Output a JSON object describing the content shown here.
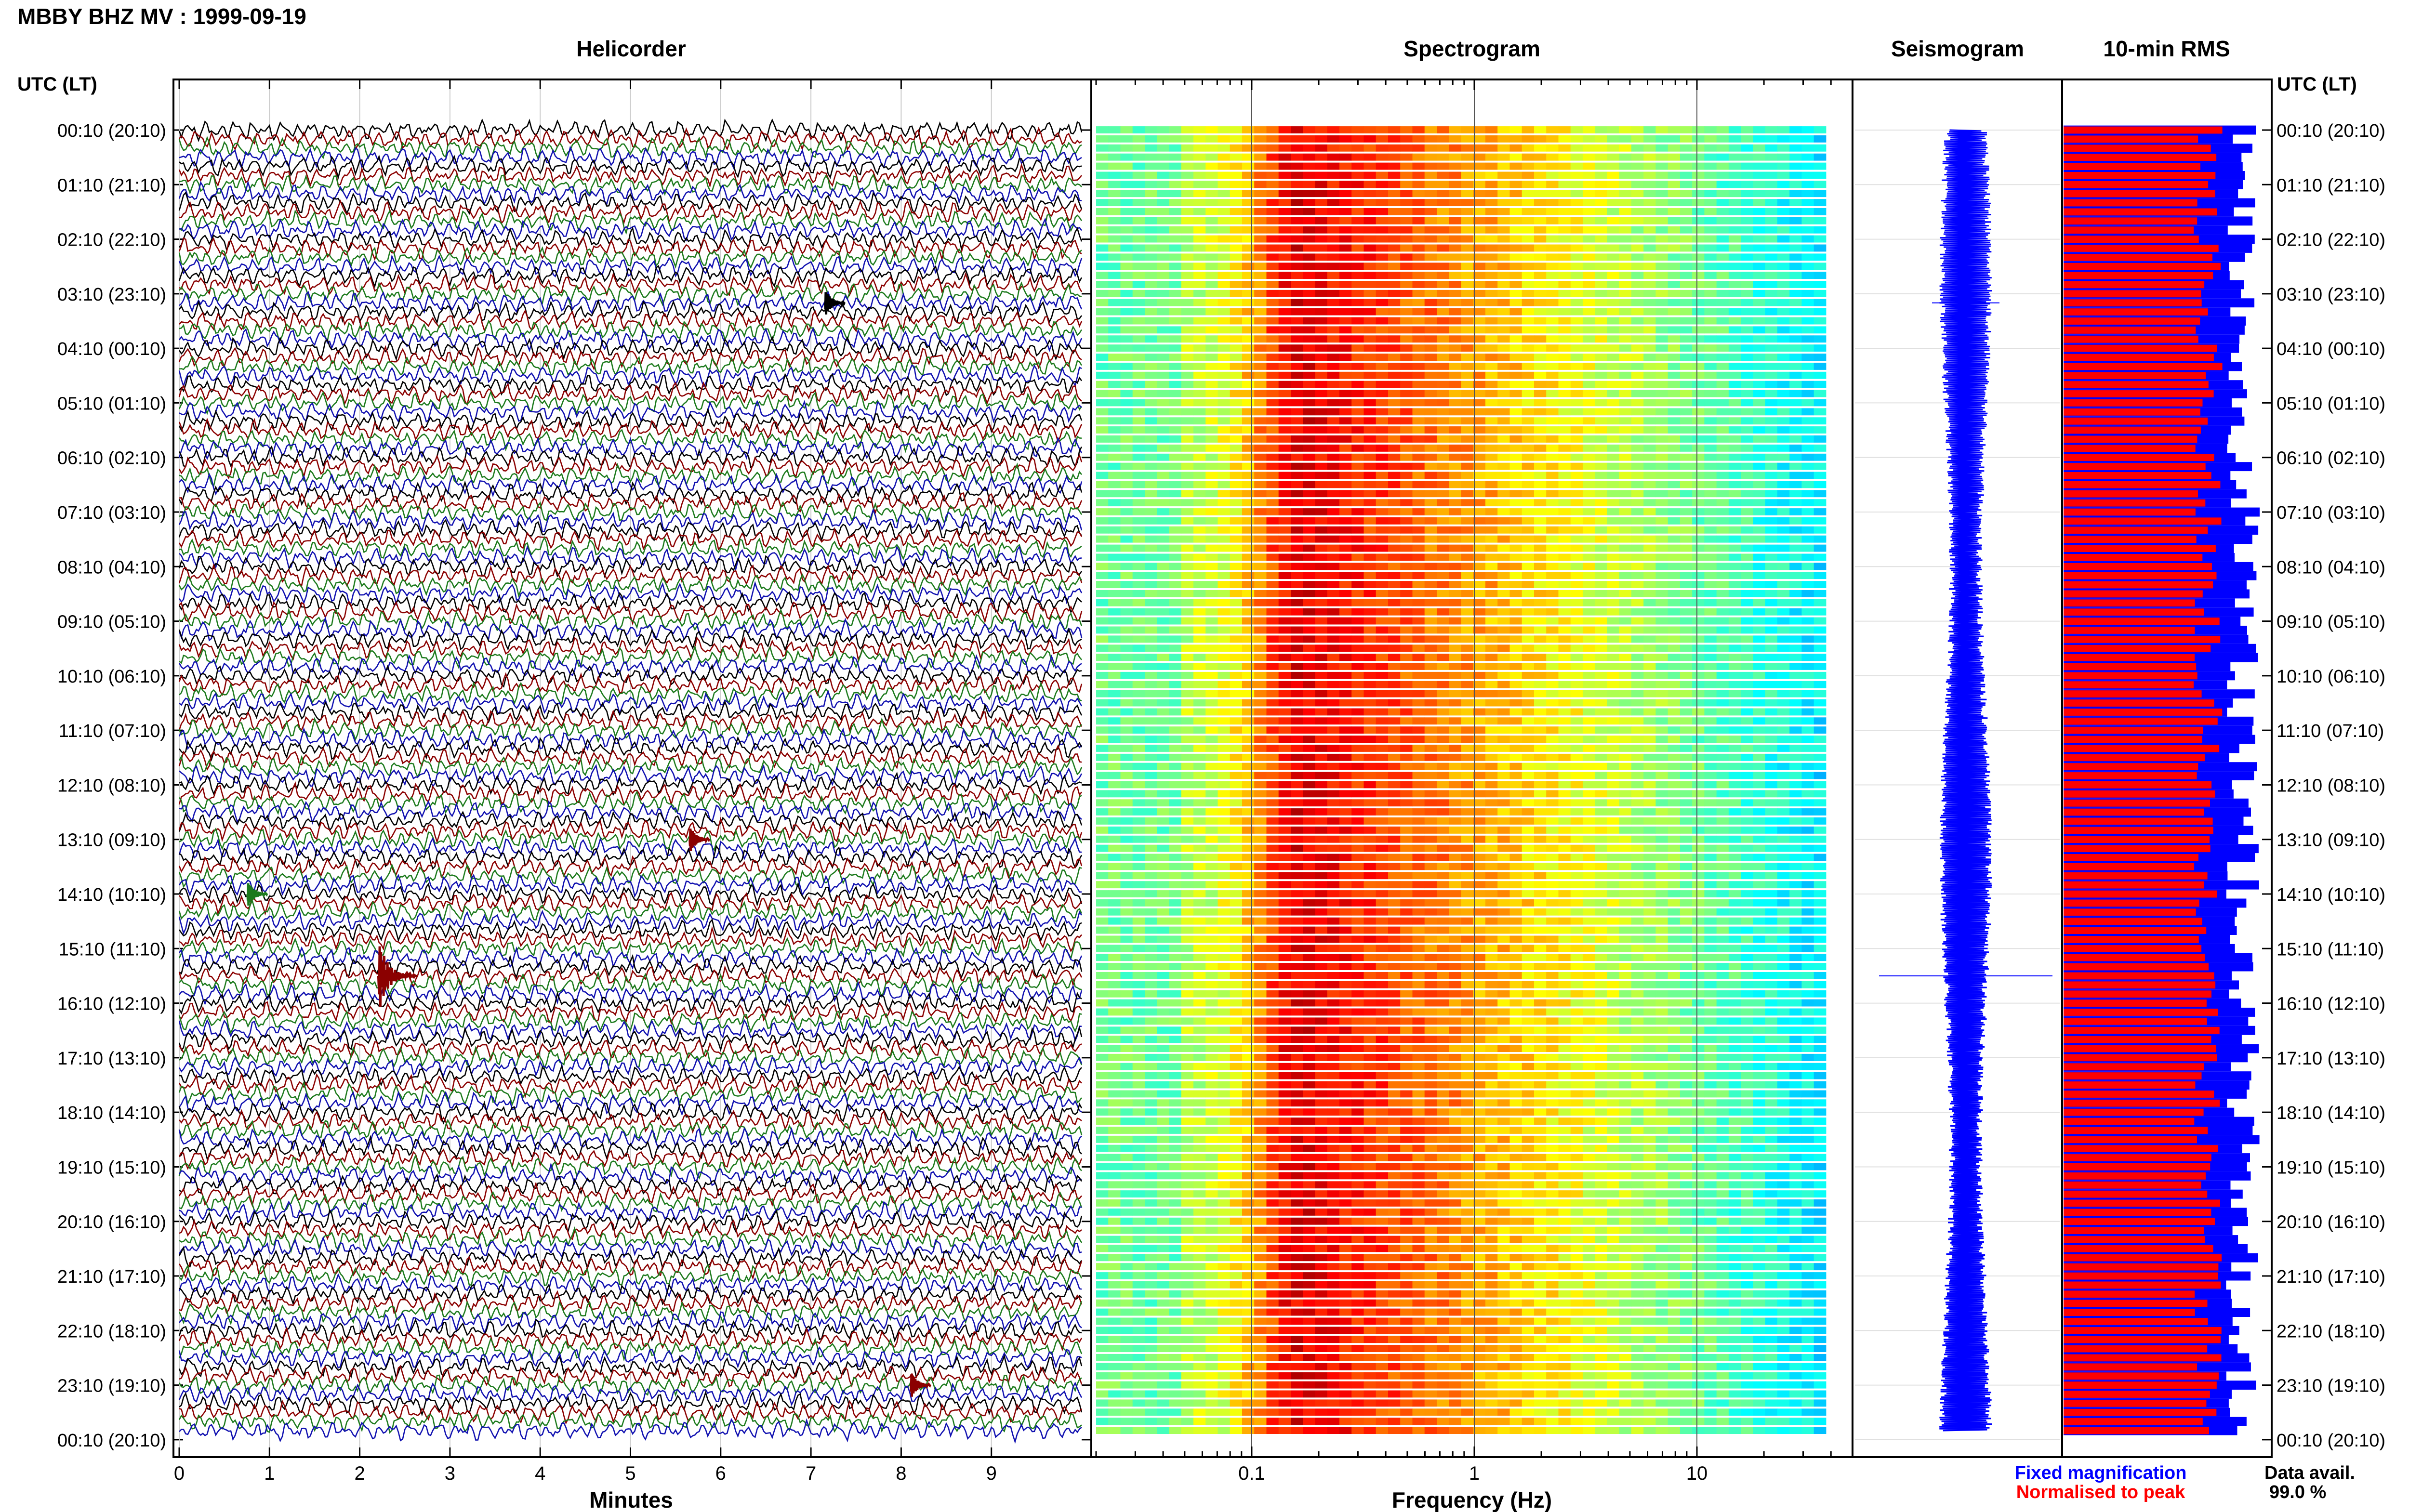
{
  "header": {
    "title": "MBBY BHZ MV : 1999-09-19",
    "left_axis_title": "UTC (LT)",
    "right_axis_title": "UTC (LT)"
  },
  "panels": {
    "helicorder": "Helicorder",
    "spectrogram": "Spectrogram",
    "seismogram": "Seismogram",
    "rms": "10-min RMS"
  },
  "footer": {
    "fixed_label": "Fixed magnification",
    "normalised_label": "Normalised to peak",
    "data_avail_label": "Data avail.",
    "data_avail_value": "99.0 %"
  },
  "colors": {
    "trace_cycle": [
      "#000000",
      "#8b0000",
      "#1c7a1c",
      "#1010b0"
    ],
    "fixed": "#0000ff",
    "normalised": "#ff0000",
    "panel_border": "#000000"
  },
  "chart_data": [
    {
      "type": "line",
      "panel": "Helicorder",
      "xlabel": "Minutes",
      "ylabel": "UTC (LT)",
      "x_ticks": [
        "0",
        "1",
        "2",
        "3",
        "4",
        "5",
        "6",
        "7",
        "8",
        "9"
      ],
      "xlim": [
        0,
        10
      ],
      "rows": 144,
      "row_minutes": 10,
      "y_tick_labels": [
        "00:10 (20:10)",
        "01:10 (21:10)",
        "02:10 (22:10)",
        "03:10 (23:10)",
        "04:10 (00:10)",
        "05:10 (01:10)",
        "06:10 (02:10)",
        "07:10 (03:10)",
        "08:10 (04:10)",
        "09:10 (05:10)",
        "10:10 (06:10)",
        "11:10 (07:10)",
        "12:10 (08:10)",
        "13:10 (09:10)",
        "14:10 (10:10)",
        "15:10 (11:10)",
        "16:10 (12:10)",
        "17:10 (13:10)",
        "18:10 (14:10)",
        "19:10 (15:10)",
        "20:10 (16:10)",
        "21:10 (17:10)",
        "22:10 (18:10)",
        "23:10 (19:10)",
        "00:10 (20:10)"
      ],
      "events": [
        {
          "row": 19,
          "minute": 7.2,
          "color": "#000000"
        },
        {
          "row": 78,
          "minute": 5.7,
          "color": "#8b0000"
        },
        {
          "row": 84,
          "minute": 0.8,
          "color": "#1c7a1c"
        },
        {
          "row": 93,
          "minute": 2.25,
          "color": "#8b0000"
        },
        {
          "row": 138,
          "minute": 8.15,
          "color": "#8b0000"
        }
      ]
    },
    {
      "type": "heatmap",
      "panel": "Spectrogram",
      "xlabel": "Frequency (Hz)",
      "x_scale": "log",
      "xlim": [
        0.02,
        50
      ],
      "x_ticks": [
        "0.1",
        "1",
        "10"
      ],
      "peak_band_hz": [
        0.12,
        0.25
      ],
      "colormap": "jet"
    },
    {
      "type": "line",
      "panel": "Seismogram",
      "signal_color": "#0000ff"
    },
    {
      "type": "bar",
      "panel": "10-min RMS",
      "orientation": "horizontal",
      "series": [
        {
          "name": "Fixed magnification",
          "color": "#0000ff"
        },
        {
          "name": "Normalised to peak",
          "color": "#ff0000"
        }
      ],
      "rows": 144
    }
  ]
}
